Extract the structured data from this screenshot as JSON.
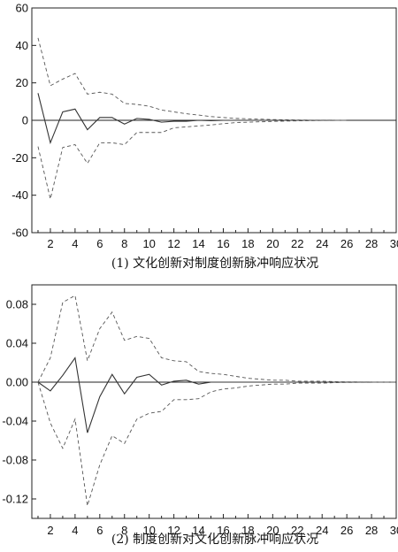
{
  "chart_data": [
    {
      "type": "line",
      "title": "(1) 文化创新对制度创新脉冲响应状况",
      "xlabel": "",
      "ylabel": "",
      "x": [
        1,
        2,
        3,
        4,
        5,
        6,
        7,
        8,
        9,
        10,
        11,
        12,
        13,
        14,
        15,
        16,
        17,
        18,
        19,
        20,
        21,
        22,
        23,
        24,
        25,
        26,
        27,
        28,
        29,
        30
      ],
      "xlim": [
        0.5,
        30
      ],
      "ylim": [
        -60,
        60
      ],
      "x_ticks": [
        2,
        4,
        6,
        8,
        10,
        12,
        14,
        16,
        18,
        20,
        22,
        24,
        26,
        28,
        30
      ],
      "x_tick_labels": [
        "2",
        "4",
        "6",
        "8",
        "10",
        "12",
        "14",
        "16",
        "18",
        "20",
        "22",
        "24",
        "26",
        "28",
        "30"
      ],
      "y_ticks": [
        60,
        40,
        20,
        0,
        -20,
        -40,
        -60
      ],
      "y_tick_labels": [
        "60",
        "40",
        "20",
        "0",
        "-20",
        "-40",
        "-60"
      ],
      "grid": false,
      "series": [
        {
          "role": "response",
          "style": "solid",
          "values": [
            14.5,
            -12,
            4.5,
            6,
            -5,
            1.5,
            1.5,
            -2,
            1,
            0.5,
            -1,
            -0.5,
            -0.5,
            0,
            -0.2,
            0,
            0,
            0,
            0,
            0,
            0,
            0,
            0,
            0,
            0,
            0,
            null,
            null,
            null,
            null
          ]
        },
        {
          "role": "upper",
          "style": "dashed",
          "values": [
            44,
            18.5,
            22,
            25,
            14,
            15,
            14,
            9,
            8.5,
            7.5,
            5.5,
            4.5,
            3.5,
            2.8,
            2,
            1.5,
            1,
            0.8,
            0.6,
            0.4,
            0.3,
            0.2,
            0.1,
            0.1,
            0.05,
            0,
            null,
            null,
            null,
            null
          ]
        },
        {
          "role": "lower",
          "style": "dashed",
          "values": [
            -14,
            -42,
            -14.5,
            -13,
            -23,
            -12,
            -12,
            -13,
            -6.5,
            -6.5,
            -6.5,
            -4,
            -3.5,
            -3,
            -2.5,
            -1.8,
            -1.2,
            -1,
            -0.8,
            -0.6,
            -0.4,
            -0.3,
            -0.2,
            -0.1,
            -0.05,
            0,
            null,
            null,
            null,
            null
          ]
        }
      ]
    },
    {
      "type": "line",
      "title": "(2) 制度创新对文化创新脉冲响应状况",
      "xlabel": "",
      "ylabel": "",
      "x": [
        1,
        2,
        3,
        4,
        5,
        6,
        7,
        8,
        9,
        10,
        11,
        12,
        13,
        14,
        15,
        16,
        17,
        18,
        19,
        20,
        21,
        22,
        23,
        24,
        25,
        26,
        27,
        28,
        29,
        30
      ],
      "xlim": [
        0.5,
        30
      ],
      "ylim": [
        -0.14,
        0.1
      ],
      "x_ticks": [
        2,
        4,
        6,
        8,
        10,
        12,
        14,
        16,
        18,
        20,
        22,
        24,
        26,
        28,
        30
      ],
      "x_tick_labels": [
        "2",
        "4",
        "6",
        "8",
        "10",
        "12",
        "14",
        "16",
        "18",
        "20",
        "22",
        "24",
        "26",
        "28",
        "30"
      ],
      "y_ticks": [
        0.08,
        0.04,
        0,
        -0.04,
        -0.08,
        -0.12
      ],
      "y_tick_labels": [
        "0.08",
        "0.04",
        "0.00",
        "-0.04",
        "-0.08",
        "-0.12"
      ],
      "grid": false,
      "series": [
        {
          "role": "response",
          "style": "solid",
          "values": [
            0,
            -0.009,
            0.007,
            0.025,
            -0.052,
            -0.015,
            0.008,
            -0.012,
            0.005,
            0.008,
            -0.003,
            0.001,
            0.002,
            -0.002,
            0,
            0,
            0,
            0,
            0,
            0,
            0,
            0,
            0,
            0,
            0,
            0,
            0,
            0,
            0,
            0
          ]
        },
        {
          "role": "upper",
          "style": "dashed",
          "values": [
            0,
            0.025,
            0.082,
            0.089,
            0.022,
            0.055,
            0.072,
            0.043,
            0.047,
            0.045,
            0.025,
            0.022,
            0.021,
            0.011,
            0.009,
            0.008,
            0.006,
            0.004,
            0.003,
            0.002,
            0.002,
            0.001,
            0.001,
            0.001,
            0.0005,
            0.0003,
            0.0002,
            0.0001,
            0,
            0
          ]
        },
        {
          "role": "lower",
          "style": "dashed",
          "values": [
            0,
            -0.042,
            -0.068,
            -0.038,
            -0.127,
            -0.085,
            -0.055,
            -0.063,
            -0.038,
            -0.032,
            -0.03,
            -0.018,
            -0.018,
            -0.017,
            -0.01,
            -0.007,
            -0.006,
            -0.004,
            -0.003,
            -0.002,
            -0.002,
            -0.001,
            -0.001,
            -0.001,
            -0.0005,
            -0.0003,
            -0.0002,
            -0.0001,
            0,
            0
          ]
        }
      ]
    }
  ]
}
